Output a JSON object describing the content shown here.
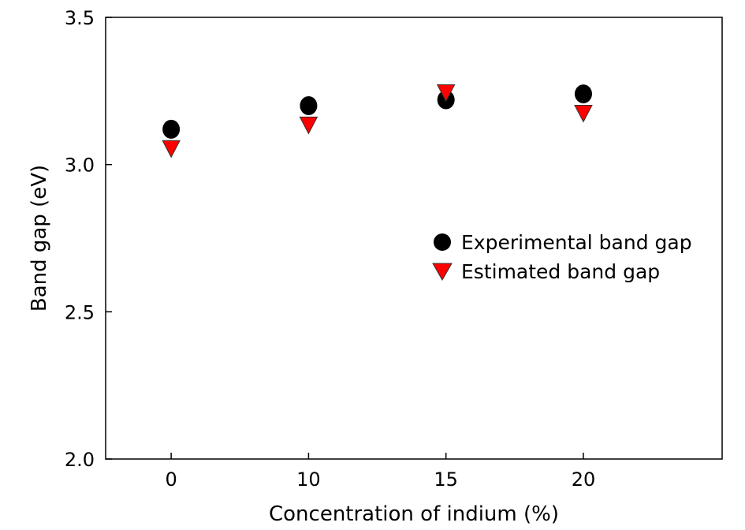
{
  "chart_data": {
    "type": "scatter",
    "xlabel": "Concentration of indium (%)",
    "ylabel": "Band gap (eV)",
    "categories": [
      "0",
      "10",
      "15",
      "20"
    ],
    "ylim": [
      2.0,
      3.5
    ],
    "yticks": [
      "2.0",
      "2.5",
      "3.0",
      "3.5"
    ],
    "grid": false,
    "legend_position": "center-right",
    "series": [
      {
        "name": "Experimental band gap",
        "marker": "circle",
        "color": "#000000",
        "values": [
          3.12,
          3.2,
          3.22,
          3.24
        ]
      },
      {
        "name": "Estimated band gap",
        "marker": "triangle-down",
        "color": "#ff0000",
        "values": [
          3.06,
          3.14,
          3.25,
          3.18
        ]
      }
    ]
  }
}
